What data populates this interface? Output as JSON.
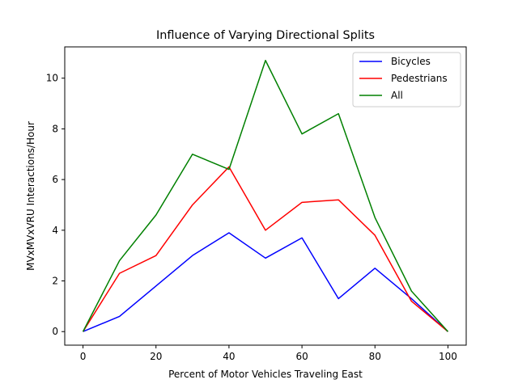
{
  "chart_data": {
    "type": "line",
    "title": "Influence of Varying Directional Splits",
    "xlabel": "Percent of Motor Vehicles Traveling East",
    "ylabel": "MVxMVxVRU Interactions/Hour",
    "xlim": [
      -5,
      105
    ],
    "ylim": [
      -0.535,
      11.235
    ],
    "xticks": [
      0,
      20,
      40,
      60,
      80,
      100
    ],
    "yticks": [
      0,
      2,
      4,
      6,
      8,
      10
    ],
    "grid": false,
    "legend_position": "top-right",
    "x": [
      0,
      10,
      20,
      30,
      40,
      50,
      60,
      70,
      80,
      90,
      100
    ],
    "series": [
      {
        "name": "Bicycles",
        "color": "#0000ff",
        "values": [
          0,
          0.6,
          1.8,
          3.0,
          3.9,
          2.9,
          3.7,
          1.3,
          2.5,
          1.3,
          0
        ]
      },
      {
        "name": "Pedestrians",
        "color": "#ff0000",
        "values": [
          0,
          2.3,
          3.0,
          5.0,
          6.5,
          4.0,
          5.1,
          5.2,
          3.8,
          1.2,
          0
        ]
      },
      {
        "name": "All",
        "color": "#008000",
        "values": [
          0,
          2.8,
          4.6,
          7.0,
          6.4,
          10.7,
          7.8,
          8.6,
          4.5,
          1.6,
          0
        ]
      }
    ]
  }
}
